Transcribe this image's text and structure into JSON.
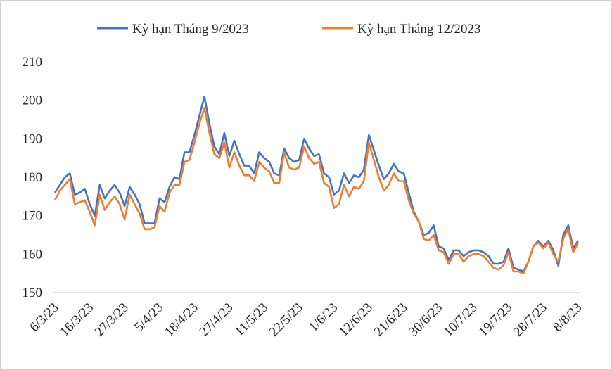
{
  "chart_data": {
    "type": "line",
    "categories": [
      "6/3/23",
      null,
      null,
      null,
      null,
      null,
      null,
      "16/3/23",
      null,
      null,
      null,
      null,
      null,
      null,
      "27/3/23",
      null,
      null,
      null,
      null,
      null,
      null,
      "5/4/23",
      null,
      null,
      null,
      null,
      null,
      null,
      "18/4/23",
      null,
      null,
      null,
      null,
      null,
      null,
      "27/4/23",
      null,
      null,
      null,
      null,
      null,
      null,
      "11/5/23",
      null,
      null,
      null,
      null,
      null,
      null,
      "22/5/23",
      null,
      null,
      null,
      null,
      null,
      null,
      "1/6/23",
      null,
      null,
      null,
      null,
      null,
      null,
      "12/6/23",
      null,
      null,
      null,
      null,
      null,
      null,
      "21/6/23",
      null,
      null,
      null,
      null,
      null,
      null,
      "30/6/23",
      null,
      null,
      null,
      null,
      null,
      null,
      "10/7/23",
      null,
      null,
      null,
      null,
      null,
      null,
      "19/7/23",
      null,
      null,
      null,
      null,
      null,
      null,
      "28/7/23",
      null,
      null,
      null,
      null,
      null,
      null,
      "8/8/23"
    ],
    "series": [
      {
        "name": "Kỳ hạn Tháng 9/2023",
        "color": "#4472c4",
        "values": [
          176,
          178,
          180,
          181,
          175.5,
          176,
          177,
          173,
          170,
          178,
          174.5,
          176.5,
          178,
          176,
          172.5,
          177.5,
          175.5,
          173,
          168,
          168,
          168,
          174.5,
          173.5,
          177.5,
          180,
          179.5,
          186.5,
          186.5,
          191,
          196,
          201,
          194,
          188,
          186,
          191.5,
          185.5,
          189.5,
          186,
          183,
          183,
          181,
          186.5,
          185,
          184,
          181,
          180.5,
          187.5,
          185,
          184,
          184.5,
          190,
          187.5,
          185.5,
          186,
          181,
          180,
          175.5,
          176.5,
          181,
          178.5,
          180.5,
          180,
          182,
          191,
          187,
          183,
          179.5,
          181,
          183.5,
          181.5,
          181,
          176,
          171,
          168.5,
          165,
          165.5,
          167.5,
          162,
          161.5,
          158.5,
          161,
          161,
          159.5,
          160.5,
          161,
          161,
          160.5,
          159.5,
          157.5,
          157.5,
          158,
          161.5,
          156.5,
          156,
          155.5,
          158,
          162,
          163.5,
          162,
          163.5,
          161,
          157,
          165,
          167.5,
          161.5,
          163.5
        ]
      },
      {
        "name": "Kỳ hạn Tháng 12/2023",
        "color": "#ed7d31",
        "values": [
          174,
          176.5,
          178,
          179.5,
          173,
          173.5,
          174,
          171,
          167.5,
          175.5,
          171.5,
          173.5,
          175,
          173,
          169,
          175.5,
          173,
          170.5,
          166.5,
          166.5,
          167,
          172.5,
          171,
          176,
          178,
          178,
          184,
          184.5,
          189,
          194,
          198,
          191.5,
          186,
          185,
          189,
          182.5,
          186.5,
          183,
          180.5,
          180.5,
          179,
          184,
          182.5,
          181.5,
          178.5,
          178.5,
          186.5,
          182.5,
          182,
          182.5,
          188,
          185,
          183.5,
          184,
          178.5,
          177.5,
          172,
          173,
          178,
          175,
          177.5,
          177,
          179,
          189,
          184.5,
          180,
          176.5,
          178,
          181,
          179,
          179,
          174,
          170.5,
          168.5,
          164,
          163.5,
          165,
          161,
          160.5,
          157.5,
          160,
          160,
          158,
          159.5,
          160,
          160,
          159.5,
          158,
          156.5,
          156,
          157,
          160.5,
          155.5,
          155.5,
          155,
          158,
          162,
          163,
          161.5,
          163,
          160,
          158,
          164,
          166.5,
          160.5,
          163
        ]
      }
    ],
    "ylim": [
      150,
      210
    ],
    "yticks": [
      150,
      160,
      170,
      180,
      190,
      200,
      210
    ],
    "legend": "top"
  }
}
